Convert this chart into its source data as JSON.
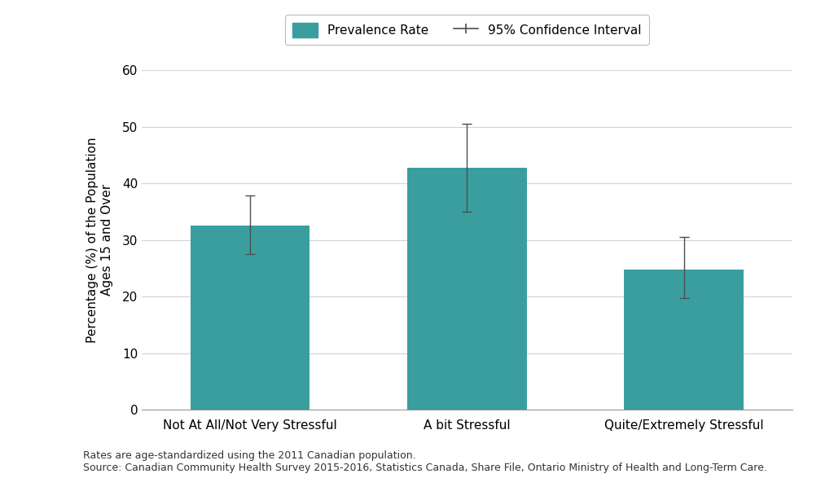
{
  "categories": [
    "Not At All/Not Very Stressful",
    "A bit Stressful",
    "Quite/Extremely Stressful"
  ],
  "values": [
    32.5,
    42.8,
    24.8
  ],
  "ci_lower": [
    27.5,
    35.0,
    19.8
  ],
  "ci_upper": [
    37.8,
    50.5,
    30.5
  ],
  "bar_color": "#3a9e9e",
  "bar_edge_color": "#3a9e9e",
  "ylabel": "Percentage (%) of the Population\nAges 15 and Over",
  "ylim": [
    0,
    60
  ],
  "yticks": [
    0,
    10,
    20,
    30,
    40,
    50,
    60
  ],
  "legend_prevalence_label": "Prevalence Rate",
  "legend_ci_label": "95% Confidence Interval",
  "footnote_line1": "Rates are age-standardized using the 2011 Canadian population.",
  "footnote_line2": "Source: Canadian Community Health Survey 2015-2016, Statistics Canada, Share File, Ontario Ministry of Health and Long-Term Care.",
  "background_color": "#ffffff",
  "grid_color": "#d3d3d3",
  "errorbar_color": "#4d4d4d",
  "bar_width": 0.55,
  "axis_fontsize": 11,
  "tick_fontsize": 11,
  "legend_fontsize": 11,
  "footnote_fontsize": 9,
  "x_positions": [
    1,
    2,
    3
  ]
}
